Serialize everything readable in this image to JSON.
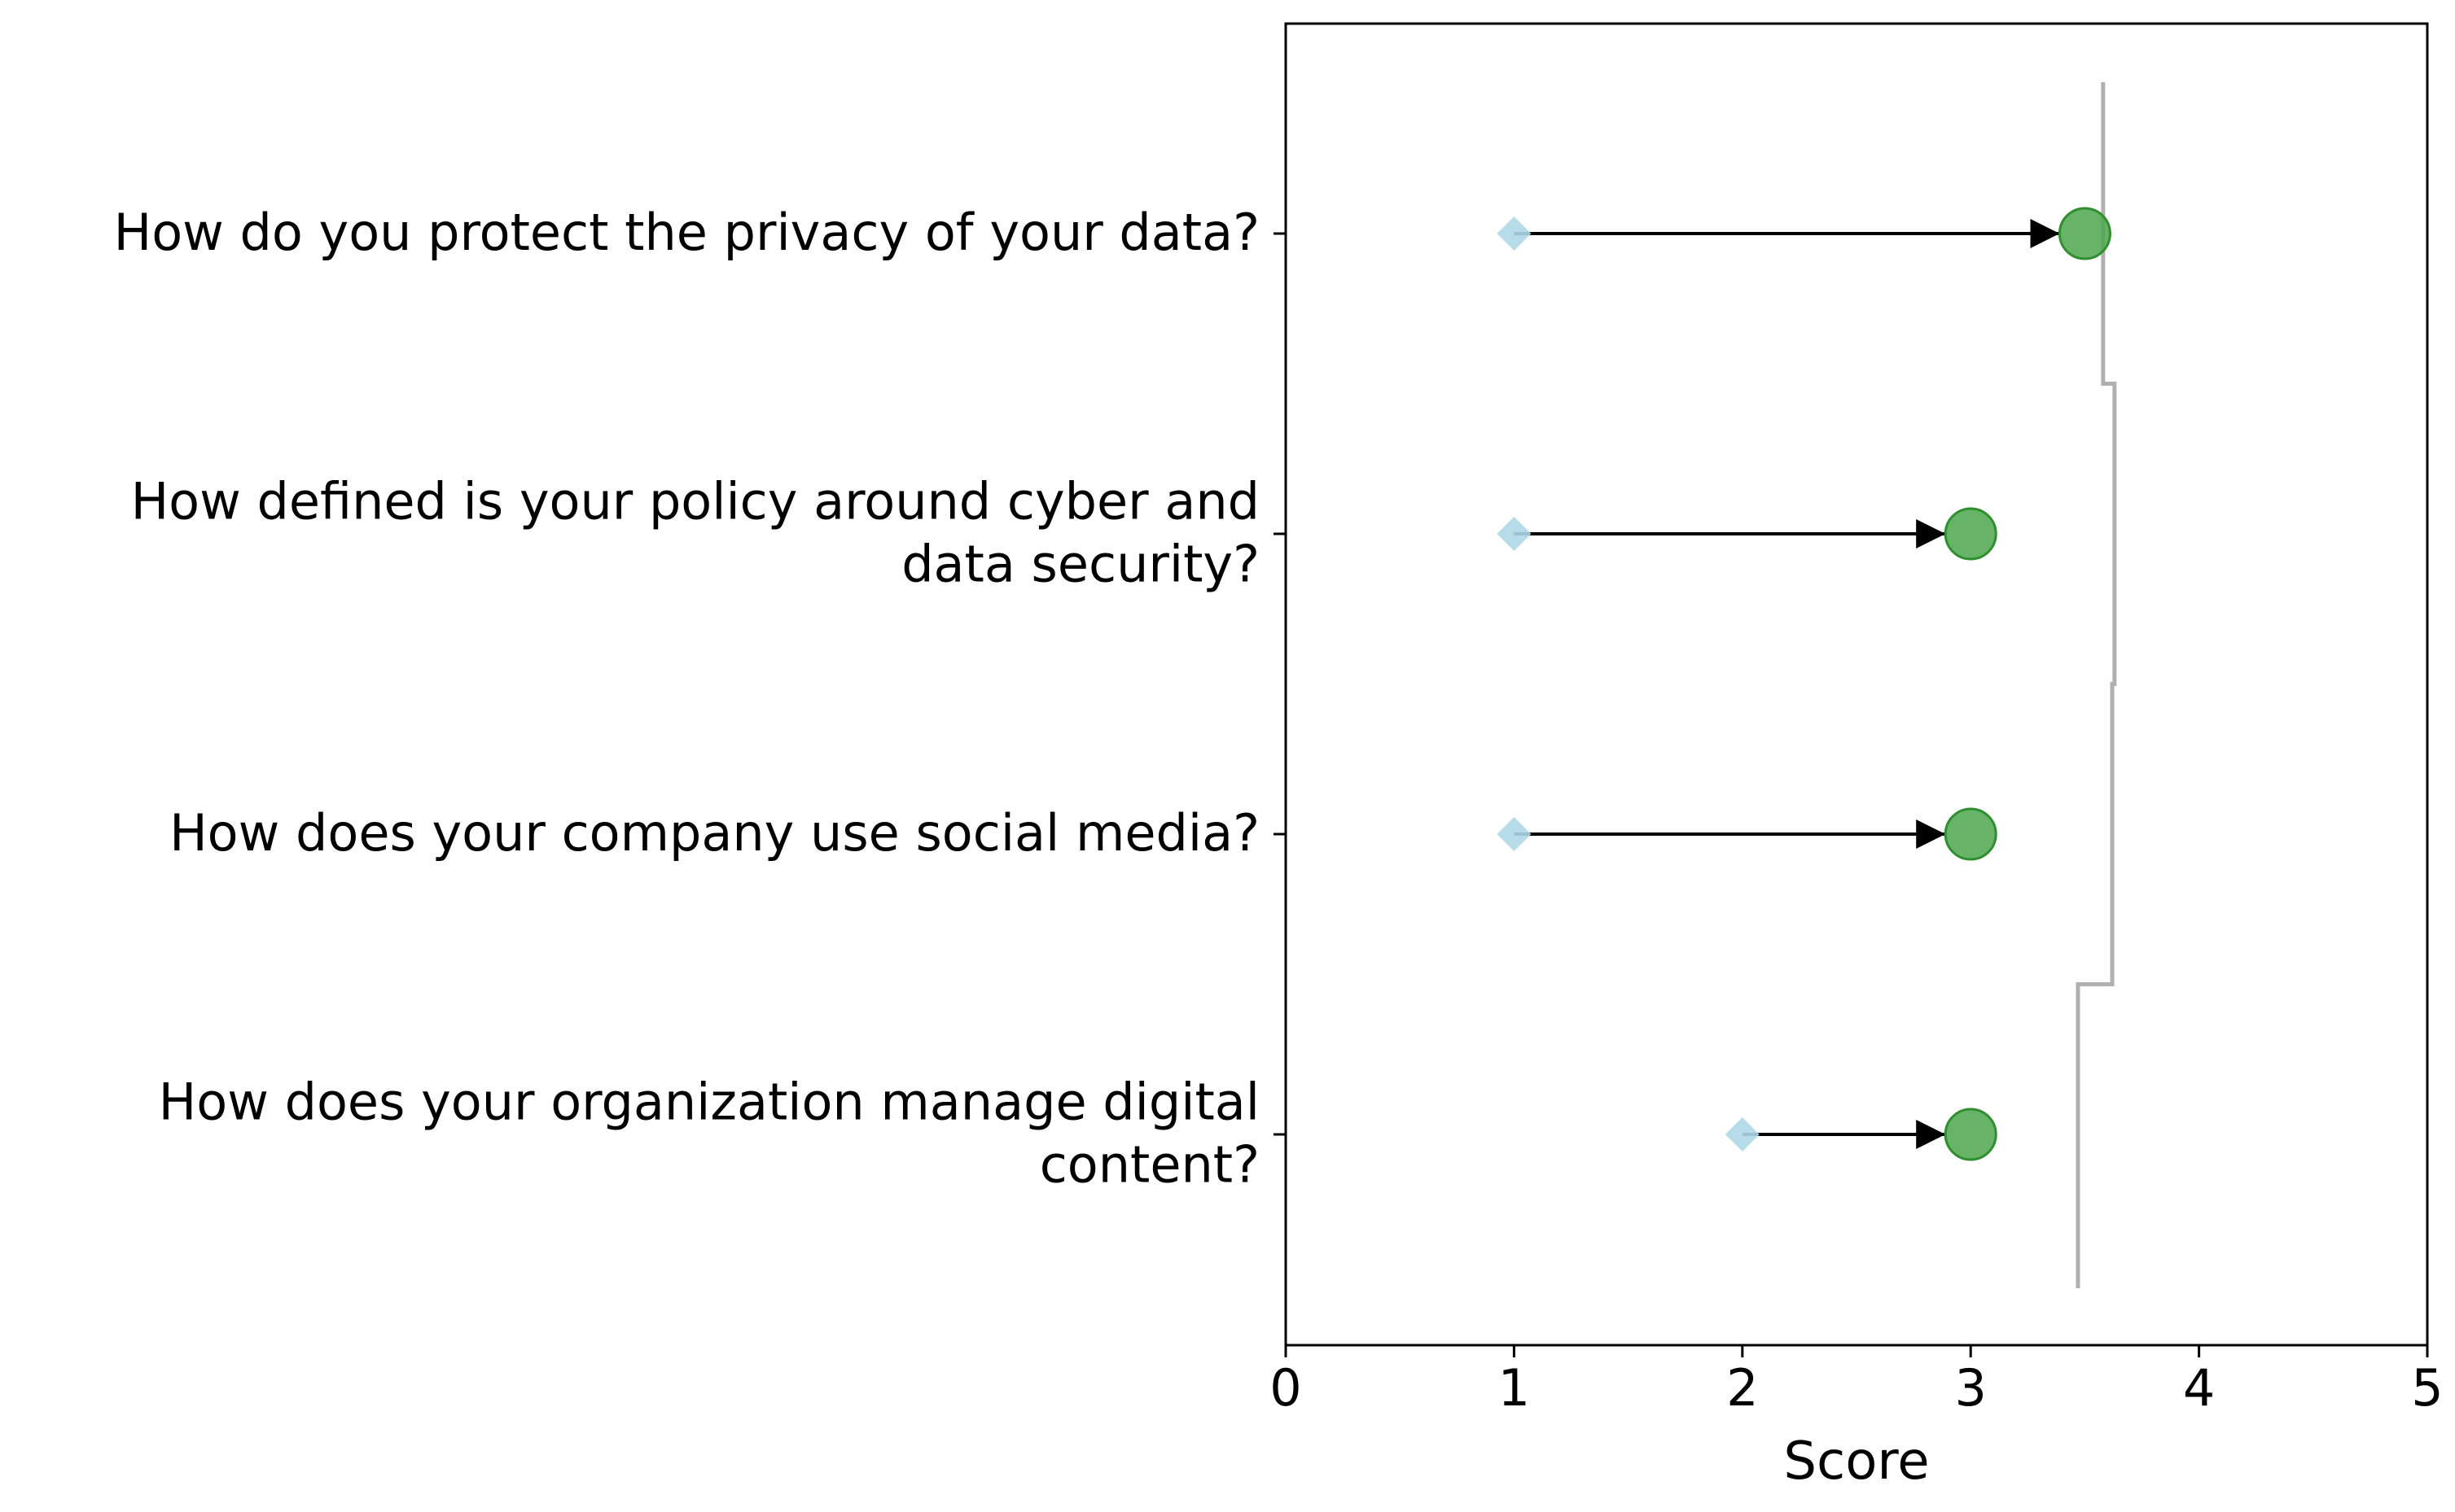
{
  "chart_data": {
    "type": "dumbbell",
    "title": "",
    "xlabel": "Score",
    "ylabel": "",
    "xlim": [
      0,
      5
    ],
    "xticks": [
      0,
      1,
      2,
      3,
      4,
      5
    ],
    "grid": false,
    "legend": "none",
    "categories": [
      [
        "How do you protect the privacy of your data?"
      ],
      [
        "How defined is your policy around cyber and",
        "data security?"
      ],
      [
        "How does your company use social media?"
      ],
      [
        "How does your organization manage digital",
        "content?"
      ]
    ],
    "series": [
      {
        "marker": "diamond",
        "color": "#add8e6",
        "values": [
          1,
          1,
          1,
          2
        ]
      },
      {
        "marker": "circle",
        "color": "#4ca64c",
        "edge_color": "#2f8f2f",
        "values": [
          3.5,
          3,
          3,
          3
        ]
      }
    ],
    "arrows": {
      "color": "#000000",
      "from_series": 0,
      "to_series": 1
    },
    "reference_line": {
      "color": "#b0b0b0",
      "style": "step",
      "values": [
        3.58,
        3.63,
        3.62,
        3.47
      ]
    }
  }
}
